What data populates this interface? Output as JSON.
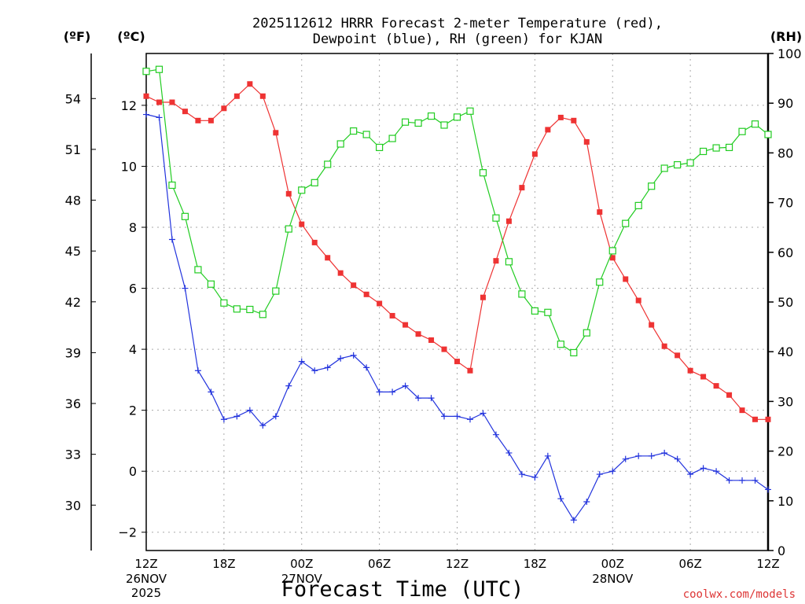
{
  "chart_data": {
    "type": "line",
    "title_line1": "2025112612 HRRR Forecast 2-meter Temperature (red),",
    "title_line2": "Dewpoint (blue), RH (green) for KJAN",
    "xlabel": "Forecast Time (UTC)",
    "watermark": "coolwx.com/models",
    "unit_f": "(ºF)",
    "unit_c": "(ºC)",
    "unit_rh": "(RH)",
    "forecast_hours": [
      0,
      1,
      2,
      3,
      4,
      5,
      6,
      7,
      8,
      9,
      10,
      11,
      12,
      13,
      14,
      15,
      16,
      17,
      18,
      19,
      20,
      21,
      22,
      23,
      24,
      25,
      26,
      27,
      28,
      29,
      30,
      31,
      32,
      33,
      34,
      35,
      36,
      37,
      38,
      39,
      40,
      41,
      42,
      43,
      44,
      45,
      46,
      47,
      48
    ],
    "x_range": [
      0,
      48
    ],
    "x_ticks": [
      {
        "hour": 0,
        "label": "12Z"
      },
      {
        "hour": 6,
        "label": "18Z"
      },
      {
        "hour": 12,
        "label": "00Z"
      },
      {
        "hour": 18,
        "label": "06Z"
      },
      {
        "hour": 24,
        "label": "12Z"
      },
      {
        "hour": 30,
        "label": "18Z"
      },
      {
        "hour": 36,
        "label": "00Z"
      },
      {
        "hour": 42,
        "label": "06Z"
      },
      {
        "hour": 48,
        "label": "12Z"
      }
    ],
    "date_labels": [
      {
        "hour": 0,
        "line1": "26NOV",
        "line2": "2025"
      },
      {
        "hour": 12,
        "line1": "27NOV",
        "line2": ""
      },
      {
        "hour": 36,
        "line1": "28NOV",
        "line2": ""
      }
    ],
    "celsius_axis": {
      "range": [
        -2.6,
        13.7
      ],
      "ticks": [
        -2,
        0,
        2,
        4,
        6,
        8,
        10,
        12
      ]
    },
    "fahrenheit_axis": {
      "ticks": [
        30,
        33,
        36,
        39,
        42,
        45,
        48,
        51,
        54
      ]
    },
    "rh_axis": {
      "range": [
        0,
        100
      ],
      "ticks": [
        0,
        10,
        20,
        30,
        40,
        50,
        60,
        70,
        80,
        90,
        100
      ]
    },
    "series": [
      {
        "name": "2-meter Temperature",
        "color": "#ee3333",
        "marker": "filled-square",
        "axis": "celsius",
        "values": [
          12.3,
          12.1,
          12.1,
          11.8,
          11.5,
          11.5,
          11.9,
          12.3,
          12.7,
          12.3,
          11.1,
          9.1,
          8.1,
          7.5,
          7.0,
          6.5,
          6.1,
          5.8,
          5.5,
          5.1,
          4.8,
          4.5,
          4.3,
          4.0,
          3.6,
          3.3,
          5.7,
          6.9,
          8.2,
          9.3,
          10.4,
          11.2,
          11.6,
          11.5,
          10.8,
          8.5,
          7.0,
          6.3,
          5.6,
          4.8,
          4.1,
          3.8,
          3.3,
          3.1,
          2.8,
          2.5,
          2.0,
          1.7,
          1.7
        ]
      },
      {
        "name": "Dewpoint",
        "color": "#2233dd",
        "marker": "plus",
        "axis": "celsius",
        "values": [
          11.7,
          11.6,
          7.6,
          6.0,
          3.3,
          2.6,
          1.7,
          1.8,
          2.0,
          1.5,
          1.8,
          2.8,
          3.6,
          3.3,
          3.4,
          3.7,
          3.8,
          3.4,
          2.6,
          2.6,
          2.8,
          2.4,
          2.4,
          1.8,
          1.8,
          1.7,
          1.9,
          1.2,
          0.6,
          -0.1,
          -0.2,
          0.5,
          -0.9,
          -1.6,
          -1.0,
          -0.1,
          0.0,
          0.4,
          0.5,
          0.5,
          0.6,
          0.4,
          -0.1,
          0.1,
          0.0,
          -0.3,
          -0.3,
          -0.3,
          -0.6
        ]
      },
      {
        "name": "Relative Humidity",
        "color": "#22cc22",
        "marker": "open-square",
        "axis": "rh",
        "values": [
          96.4,
          96.8,
          73.5,
          67.2,
          56.5,
          53.6,
          49.8,
          48.6,
          48.5,
          47.5,
          52.2,
          64.7,
          72.5,
          74.0,
          77.7,
          81.8,
          84.4,
          83.7,
          81.1,
          82.9,
          86.2,
          86.0,
          87.4,
          85.6,
          87.2,
          88.4,
          76.0,
          66.9,
          58.1,
          51.6,
          48.2,
          47.9,
          41.5,
          39.8,
          43.8,
          54.0,
          60.3,
          65.8,
          69.4,
          73.3,
          76.9,
          77.6,
          78.0,
          80.3,
          81.0,
          81.1,
          84.3,
          85.8,
          83.7
        ]
      }
    ]
  }
}
